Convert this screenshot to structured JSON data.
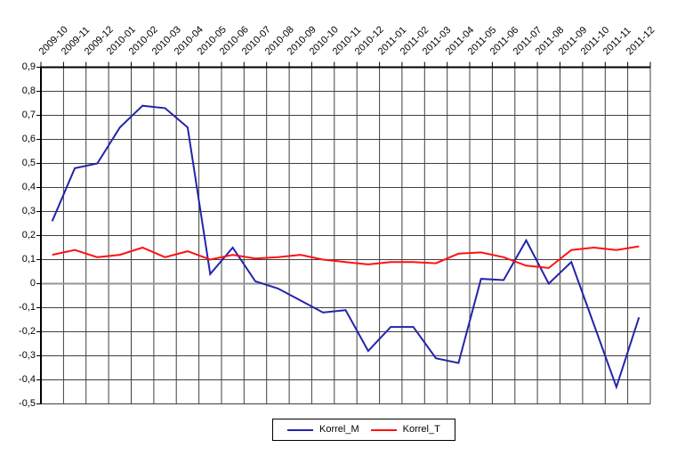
{
  "chart_data": {
    "type": "line",
    "title": "",
    "xlabel": "",
    "ylabel": "",
    "categories": [
      "2009-10",
      "2009-11",
      "2009-12",
      "2010-01",
      "2010-02",
      "2010-03",
      "2010-04",
      "2010-05",
      "2010-06",
      "2010-07",
      "2010-08",
      "2010-09",
      "2010-10",
      "2010-11",
      "2010-12",
      "2011-01",
      "2011-02",
      "2011-03",
      "2011-04",
      "2011-05",
      "2011-06",
      "2011-07",
      "2011-08",
      "2011-09",
      "2011-10",
      "2011-11",
      "2011-12"
    ],
    "series": [
      {
        "name": "Korrel_M",
        "color": "#2424AA",
        "values": [
          0.26,
          0.48,
          0.5,
          0.65,
          0.74,
          0.73,
          0.65,
          0.04,
          0.15,
          0.01,
          -0.02,
          -0.07,
          -0.12,
          -0.11,
          -0.28,
          -0.18,
          -0.18,
          -0.31,
          -0.33,
          0.02,
          0.015,
          0.18,
          0.0,
          0.09,
          -0.17,
          -0.43,
          -0.14
        ]
      },
      {
        "name": "Korrel_T",
        "color": "#FF1111",
        "values": [
          0.12,
          0.14,
          0.11,
          0.12,
          0.15,
          0.11,
          0.135,
          0.1,
          0.12,
          0.105,
          0.11,
          0.12,
          0.1,
          0.09,
          0.08,
          0.09,
          0.09,
          0.085,
          0.125,
          0.13,
          0.11,
          0.075,
          0.065,
          0.14,
          0.15,
          0.14,
          0.155
        ]
      }
    ],
    "ylim": [
      -0.5,
      0.9
    ],
    "ytick_step": 0.1,
    "decimal_separator": ",",
    "zero_label": "0",
    "grid": "both",
    "legend_position": "bottom-center"
  }
}
